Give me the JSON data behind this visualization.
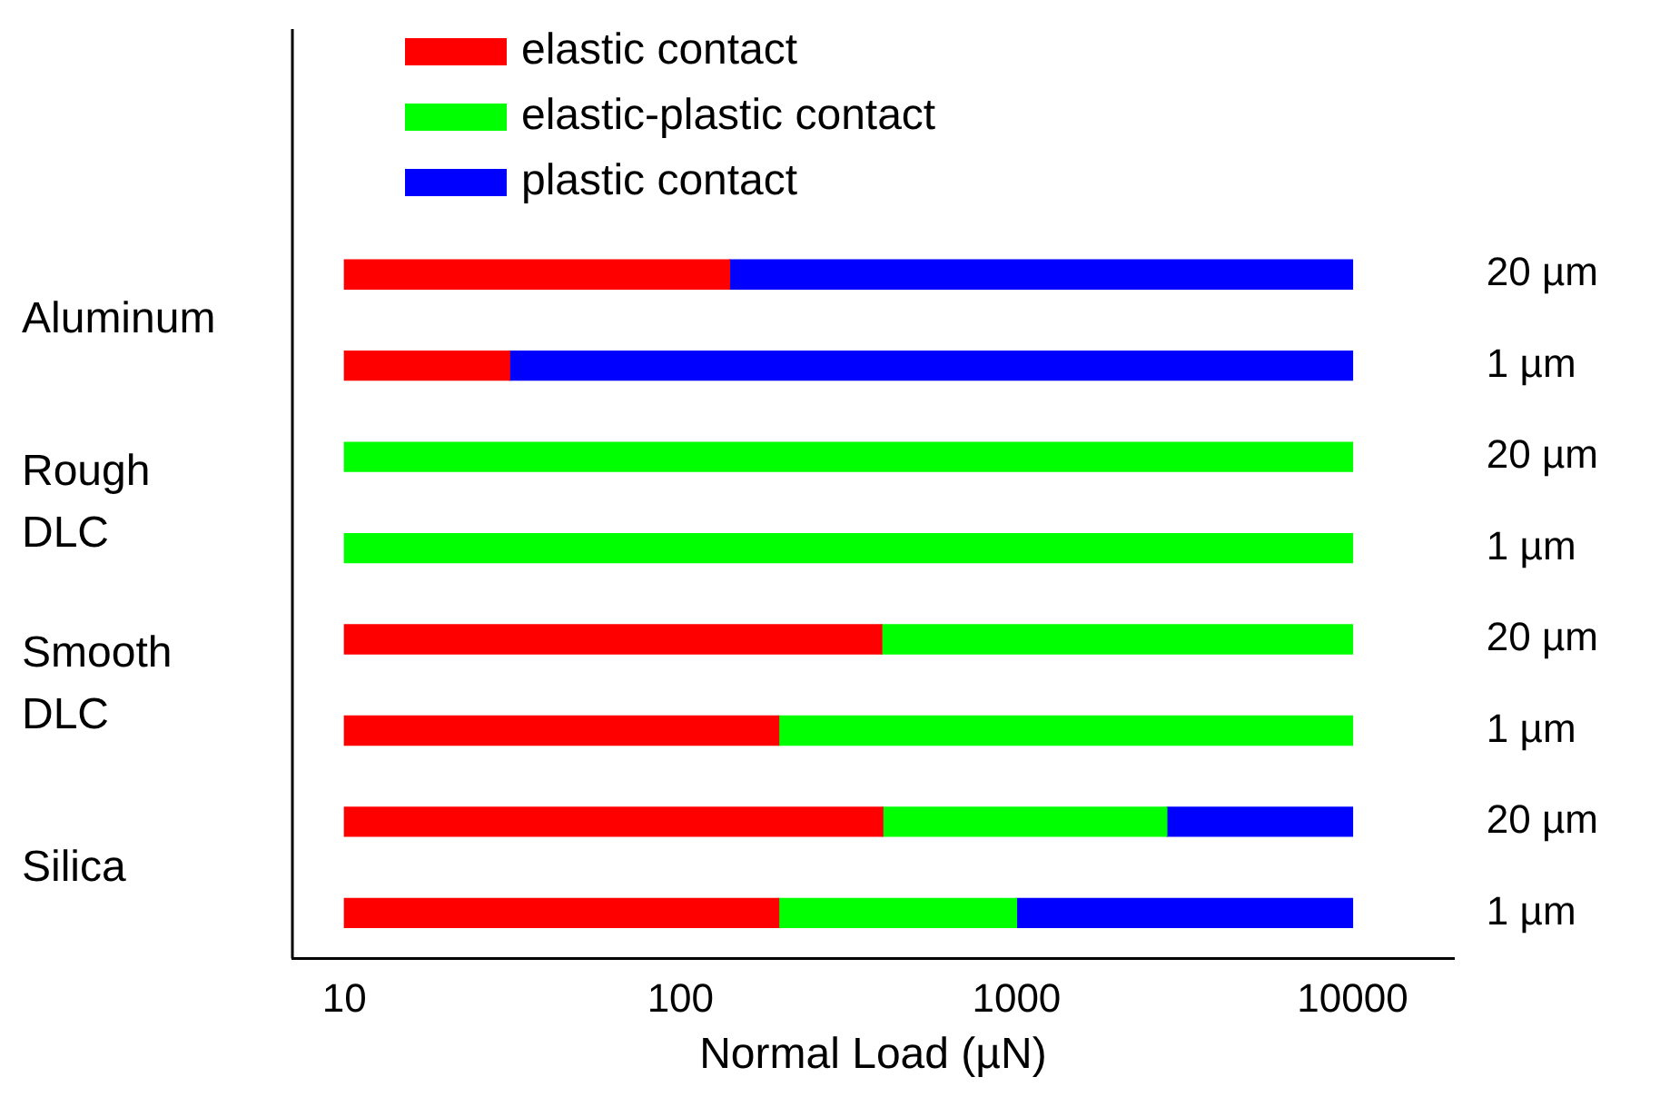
{
  "chart_data": {
    "type": "bar",
    "orientation": "horizontal",
    "log": "x",
    "xlabel": "Normal Load (µN)",
    "categories": [
      "20 µm",
      "1 µm",
      "20 µm",
      "1 µm",
      "20 µm",
      "1 µm",
      "20 µm",
      "1 µm"
    ],
    "series": [
      {
        "name": "elastic contact",
        "color": "#ff0000",
        "base": [
          10,
          10,
          null,
          null,
          10,
          10,
          10,
          10
        ],
        "values": [
          130,
          21,
          null,
          null,
          387,
          186,
          390,
          186
        ]
      },
      {
        "name": "elastic-plastic contact",
        "color": "#00ff00",
        "base": [
          null,
          null,
          10,
          10,
          397,
          196,
          400,
          196
        ],
        "values": [
          null,
          null,
          9990,
          9990,
          9603,
          9804,
          2400,
          804
        ]
      },
      {
        "name": "plastic contact",
        "color": "#0000ff",
        "base": [
          140,
          31,
          null,
          null,
          null,
          null,
          2800,
          1000
        ],
        "values": [
          9860,
          9969,
          null,
          null,
          null,
          null,
          7200,
          9000
        ]
      }
    ],
    "annotations": [
      "Aluminum",
      "Rough DLC",
      "Smooth DLC",
      "Silica"
    ],
    "xlim": [
      7,
      20000
    ],
    "xticks": [
      10,
      100,
      1000,
      10000
    ],
    "grid": false,
    "legend": "top left"
  }
}
